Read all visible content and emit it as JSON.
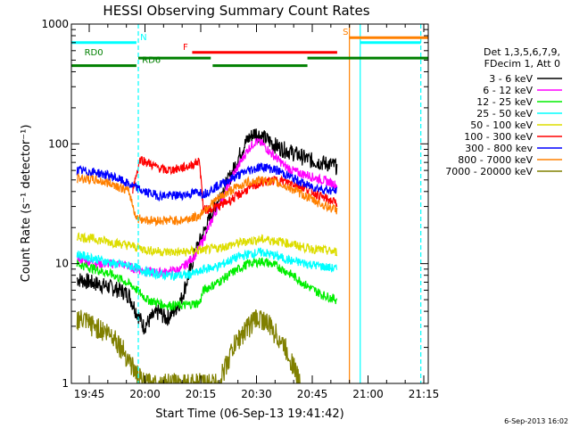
{
  "chart_data": {
    "type": "line",
    "title": "HESSI Observing Summary Count Rates",
    "xlabel": "Start Time (06-Sep-13 19:41:42)",
    "ylabel": "Count Rate (s⁻¹ detector⁻¹)",
    "yscale": "log",
    "ylim": [
      1,
      1000
    ],
    "xlim_minutes": [
      -1.5,
      94.5
    ],
    "x_ticks": [
      {
        "label": "19:45",
        "min": 3.3
      },
      {
        "label": "20:00",
        "min": 18.3
      },
      {
        "label": "20:15",
        "min": 33.3
      },
      {
        "label": "20:30",
        "min": 48.3
      },
      {
        "label": "20:45",
        "min": 63.3
      },
      {
        "label": "21:00",
        "min": 78.3
      },
      {
        "label": "21:15",
        "min": 93.3
      }
    ],
    "y_ticks": [
      {
        "label": "1",
        "value": 1
      },
      {
        "label": "10",
        "value": 10
      },
      {
        "label": "100",
        "value": 100
      },
      {
        "label": "1000",
        "value": 1000
      }
    ],
    "legend": {
      "placement": "right",
      "header": [
        "Det 1,3,5,6,7,9,",
        "FDecim 1, Att 0"
      ]
    },
    "series": [
      {
        "name": "3 - 6 keV",
        "color": "#000000",
        "x": [
          0,
          4,
          8,
          12,
          14,
          16,
          18,
          20,
          22,
          24,
          26,
          28,
          30,
          32,
          34,
          36,
          38,
          40,
          42,
          44,
          46,
          48,
          50,
          52,
          54,
          56,
          58,
          60,
          62,
          64,
          66,
          68,
          70
        ],
        "y": [
          7.5,
          7,
          6.5,
          6,
          5.5,
          4,
          3,
          3.5,
          4,
          3.5,
          4,
          5,
          8,
          13,
          18,
          25,
          35,
          45,
          60,
          85,
          110,
          125,
          115,
          105,
          95,
          90,
          85,
          80,
          75,
          72,
          70,
          68,
          65
        ]
      },
      {
        "name": "6 - 12 keV",
        "color": "#ff00ff",
        "x": [
          0,
          6,
          12,
          16,
          20,
          24,
          28,
          32,
          34,
          36,
          38,
          40,
          42,
          44,
          46,
          48,
          50,
          52,
          54,
          56,
          58,
          60,
          62,
          64,
          66,
          68,
          70
        ],
        "y": [
          11,
          10,
          10,
          9,
          8.5,
          8.5,
          9,
          12,
          16,
          22,
          30,
          40,
          55,
          70,
          90,
          105,
          100,
          85,
          75,
          65,
          60,
          57,
          55,
          52,
          50,
          48,
          45
        ]
      },
      {
        "name": "12 - 25 keV",
        "color": "#00ee00",
        "x": [
          0,
          5,
          10,
          15,
          19,
          24,
          29,
          33,
          34,
          38,
          42,
          46,
          50,
          54,
          58,
          62,
          66,
          70
        ],
        "y": [
          10,
          9,
          8,
          6.5,
          5,
          4.5,
          4.5,
          4.7,
          6,
          7,
          8.5,
          10,
          10.5,
          9.5,
          8,
          6.5,
          5.5,
          5
        ]
      },
      {
        "name": "25 - 50 keV",
        "color": "#00ffff",
        "x": [
          0,
          5,
          10,
          15,
          19,
          24,
          29,
          33,
          34,
          38,
          42,
          46,
          50,
          54,
          58,
          62,
          66,
          70
        ],
        "y": [
          12,
          11,
          10,
          9.5,
          8.5,
          8,
          8,
          8.5,
          9,
          9.5,
          11,
          12,
          12.5,
          11.5,
          10.5,
          10,
          9.5,
          9
        ]
      },
      {
        "name": "50 - 100 keV",
        "color": "#dddd00",
        "x": [
          0,
          5,
          10,
          15,
          19,
          24,
          29,
          33,
          34,
          38,
          42,
          46,
          50,
          54,
          58,
          62,
          66,
          70
        ],
        "y": [
          17,
          16,
          15,
          14,
          13,
          12.5,
          12.5,
          13,
          13,
          13.5,
          14.5,
          15.5,
          16,
          15.5,
          14.5,
          13.5,
          13,
          12.5
        ]
      },
      {
        "name": "100 - 300 keV",
        "color": "#ff0000",
        "x": [
          15,
          17,
          19,
          21,
          24,
          27,
          30,
          33,
          34,
          38,
          42,
          46,
          50,
          54,
          58,
          62,
          66,
          70
        ],
        "y": [
          42,
          75,
          70,
          65,
          60,
          62,
          65,
          72,
          28,
          30,
          35,
          42,
          48,
          50,
          47,
          42,
          36,
          32
        ]
      },
      {
        "name": "300 - 800 kev",
        "color": "#0000ff",
        "x": [
          0,
          5,
          10,
          14,
          18,
          22,
          26,
          30,
          33,
          34,
          38,
          42,
          46,
          50,
          54,
          58,
          62,
          66,
          70
        ],
        "y": [
          60,
          58,
          53,
          46,
          40,
          37,
          37,
          38,
          40,
          38,
          45,
          52,
          60,
          65,
          60,
          52,
          45,
          42,
          40
        ]
      },
      {
        "name": "800 - 7000 keV",
        "color": "#ff8000",
        "x": [
          0,
          5,
          10,
          14,
          16,
          20,
          24,
          28,
          33,
          34,
          38,
          42,
          46,
          50,
          54,
          58,
          62,
          66,
          70
        ],
        "y": [
          52,
          50,
          46,
          40,
          24,
          23,
          23,
          23,
          25,
          28,
          35,
          42,
          48,
          50,
          47,
          42,
          36,
          31,
          28
        ]
      },
      {
        "name": "7000 - 20000 keV",
        "color": "#808000",
        "x": [
          0,
          5,
          10,
          12,
          14,
          16,
          18,
          22,
          26,
          30,
          34,
          38,
          40,
          42,
          44,
          46,
          48,
          50,
          52,
          54,
          56,
          58,
          60
        ],
        "y": [
          3.5,
          3,
          2.5,
          2,
          1.6,
          1.2,
          1,
          1,
          1,
          1,
          1,
          1,
          1.4,
          2,
          2.5,
          3,
          3.5,
          3.5,
          3,
          2.5,
          2,
          1.5,
          1
        ]
      }
    ],
    "annotations": [
      {
        "label": "N",
        "color": "#00ffff",
        "y": 700,
        "x0": -1.5,
        "x1": 16,
        "label_x": 17
      },
      {
        "label": "F",
        "color": "#ff0000",
        "y": 580,
        "x0": 31,
        "x1": 70,
        "label_x": 28.5
      },
      {
        "label": "S",
        "color": "#ff8000",
        "y": 770,
        "x0": 73.3,
        "x1": 94.5,
        "label_x": 71.5
      },
      {
        "label": "",
        "color": "#00ffff",
        "y": 700,
        "x0": 76.2,
        "x1": 92.5,
        "label_x": null
      },
      {
        "label": "RD0",
        "color": "#008000",
        "y": 520,
        "x0": 16.5,
        "x1": 36,
        "label_x": 2
      },
      {
        "label": "",
        "color": "#008000",
        "y": 520,
        "x0": 62,
        "x1": 94.5,
        "label_x": null
      },
      {
        "label": "RD6",
        "color": "#008000",
        "y": 450,
        "x0": -1.5,
        "x1": 16,
        "label_x": 17.5
      },
      {
        "label": "",
        "color": "#008000",
        "y": 450,
        "x0": 36.5,
        "x1": 62,
        "label_x": null
      }
    ],
    "vertical_markers": [
      {
        "x": 16.5,
        "color": "#00ffff",
        "style": "dashed"
      },
      {
        "x": 73.3,
        "color": "#ff8000",
        "style": "solid"
      },
      {
        "x": 76.2,
        "color": "#00ffff",
        "style": "solid"
      },
      {
        "x": 92.5,
        "color": "#00ffff",
        "style": "dashed"
      }
    ]
  },
  "footer": {
    "timestamp": "6-Sep-2013 16:02"
  }
}
